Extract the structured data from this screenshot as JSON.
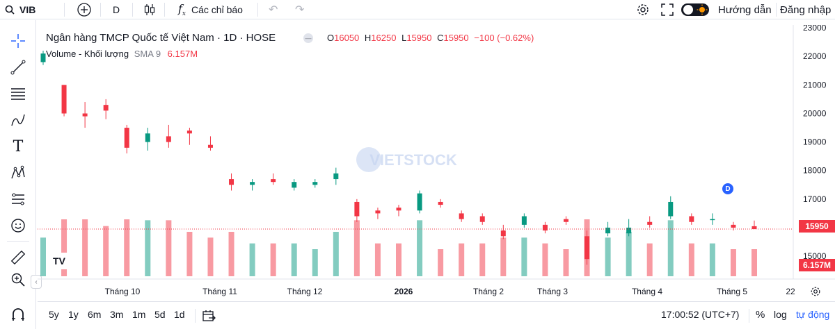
{
  "toolbar": {
    "symbol": "VIB",
    "interval": "D",
    "indicators_label": "Các chỉ báo",
    "guide_label": "Hướng dẫn",
    "login_label": "Đăng nhập"
  },
  "legend": {
    "title": "Ngân hàng TMCP Quốc tế Việt Nam · 1D · HOSE",
    "open_label": "O",
    "open": "16050",
    "high_label": "H",
    "high": "16250",
    "low_label": "L",
    "low": "15950",
    "close_label": "C",
    "close": "15950",
    "change": "−100 (−0.62%)",
    "volume_label": "Volume - Khối lượng",
    "sma_label": "SMA 9",
    "volume_value": "6.157M"
  },
  "watermark": "VIETSTOCK",
  "price_tag": "15950",
  "volume_tag": "6.157M",
  "event_badge": "D",
  "bottom": {
    "ranges": [
      "5y",
      "1y",
      "6m",
      "3m",
      "1m",
      "5d",
      "1d"
    ],
    "time": "17:00:52 (UTC+7)",
    "percent": "%",
    "log": "log",
    "auto": "tự động"
  },
  "colors": {
    "up": "#089981",
    "down": "#f23645",
    "accent": "#2962ff"
  },
  "chart_data": {
    "type": "candlestick",
    "price_axis_ticks": [
      23000,
      22000,
      21000,
      20000,
      19000,
      18000,
      17000,
      16000,
      15000
    ],
    "ylim": [
      14200,
      23100
    ],
    "time_axis_labels": [
      "Tháng 10",
      "Tháng 11",
      "Tháng 12",
      "2026",
      "Tháng 2",
      "Tháng 3",
      "Tháng 4",
      "Tháng 5",
      "22"
    ],
    "series": [
      {
        "name": "Volume - Khối lượng",
        "candles_ohlc_approx": [
          [
            21800,
            22200,
            21700,
            22100
          ],
          [
            21000,
            21000,
            19900,
            20000
          ],
          [
            20000,
            20400,
            19500,
            19900
          ],
          [
            20300,
            20500,
            19800,
            20100
          ],
          [
            19500,
            19600,
            18600,
            18800
          ],
          [
            19000,
            19500,
            18700,
            19300
          ],
          [
            19200,
            19600,
            18800,
            19000
          ],
          [
            19400,
            19500,
            18900,
            19300
          ],
          [
            18900,
            19200,
            18700,
            18800
          ],
          [
            17700,
            17900,
            17300,
            17500
          ],
          [
            17500,
            17700,
            17300,
            17600
          ],
          [
            17700,
            17900,
            17500,
            17600
          ],
          [
            17400,
            17700,
            17300,
            17600
          ],
          [
            17500,
            17700,
            17400,
            17600
          ],
          [
            17700,
            18100,
            17500,
            17900
          ],
          [
            16900,
            17000,
            16200,
            16400
          ],
          [
            16600,
            16700,
            16300,
            16500
          ],
          [
            16700,
            16800,
            16400,
            16600
          ],
          [
            16600,
            17300,
            16500,
            17200
          ],
          [
            16900,
            17000,
            16700,
            16800
          ],
          [
            16500,
            16600,
            16200,
            16300
          ],
          [
            16400,
            16500,
            16100,
            16200
          ],
          [
            15900,
            16100,
            15600,
            15700
          ],
          [
            16100,
            16500,
            16000,
            16400
          ],
          [
            16100,
            16200,
            15800,
            15900
          ],
          [
            16300,
            16400,
            16100,
            16200
          ],
          [
            15700,
            15900,
            14700,
            14900
          ],
          [
            15800,
            16200,
            15700,
            16000
          ],
          [
            15800,
            16300,
            15700,
            16000
          ],
          [
            16200,
            16400,
            16000,
            16100
          ],
          [
            16400,
            17100,
            16300,
            16900
          ],
          [
            16400,
            16500,
            16100,
            16200
          ],
          [
            16300,
            16500,
            16100,
            16300
          ],
          [
            16100,
            16200,
            15900,
            16000
          ],
          [
            16050,
            16250,
            15950,
            15950
          ]
        ]
      }
    ],
    "sma_period": 9,
    "last_close": 15950,
    "last_volume": "6.157M"
  }
}
